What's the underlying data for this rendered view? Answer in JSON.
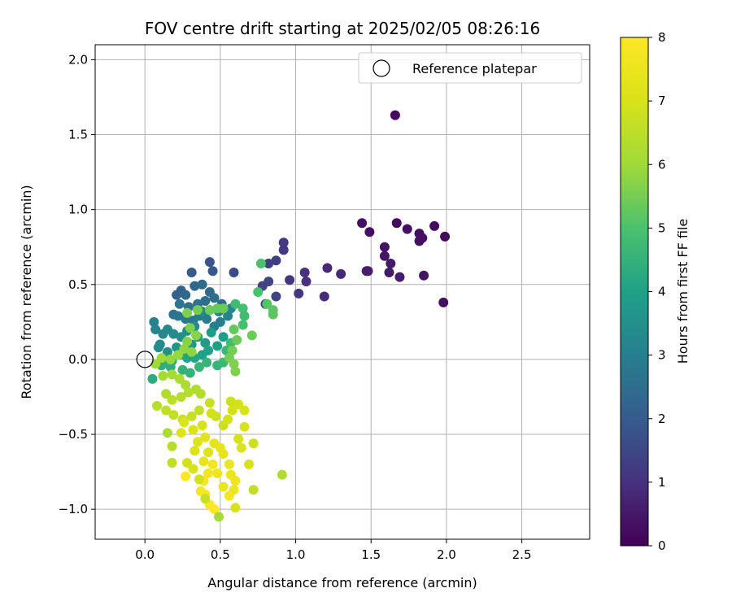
{
  "chart_data": {
    "type": "scatter",
    "title": "FOV centre drift starting at 2025/02/05 08:26:16",
    "xlabel": "Angular distance from reference (arcmin)",
    "ylabel": "Rotation from reference (arcmin)",
    "xlim": [
      -0.33,
      2.95
    ],
    "ylim": [
      -1.2,
      2.1
    ],
    "xticks": [
      0.0,
      0.5,
      1.0,
      1.5,
      2.0,
      2.5
    ],
    "xtick_labels": [
      "0.0",
      "0.5",
      "1.0",
      "1.5",
      "2.0",
      "2.5"
    ],
    "yticks": [
      -1.0,
      -0.5,
      0.0,
      0.5,
      1.0,
      1.5,
      2.0
    ],
    "ytick_labels": [
      "−1.0",
      "−0.5",
      "0.0",
      "0.5",
      "1.0",
      "1.5",
      "2.0"
    ],
    "grid": true,
    "legend": {
      "placement": "top-right",
      "entries": [
        "Reference platepar"
      ]
    },
    "reference_point": {
      "label": "Reference platepar",
      "x": 0.0,
      "y": 0.0
    },
    "colorbar": {
      "label": "Hours from first FF file",
      "colormap": "viridis",
      "range": [
        0,
        8
      ],
      "ticks": [
        0,
        1,
        2,
        3,
        4,
        5,
        6,
        7,
        8
      ],
      "tick_labels": [
        "0",
        "1",
        "2",
        "3",
        "4",
        "5",
        "6",
        "7",
        "8"
      ]
    },
    "series": [
      {
        "points": [
          [
            1.66,
            1.63,
            0.2
          ],
          [
            1.44,
            0.91,
            0.3
          ],
          [
            1.67,
            0.91,
            0.2
          ],
          [
            1.49,
            0.85,
            0.3
          ],
          [
            1.74,
            0.87,
            0.3
          ],
          [
            1.92,
            0.89,
            0.2
          ],
          [
            1.99,
            0.82,
            0.2
          ],
          [
            1.82,
            0.84,
            0.3
          ],
          [
            1.84,
            0.81,
            0.3
          ],
          [
            1.82,
            0.79,
            0.3
          ],
          [
            1.59,
            0.75,
            0.4
          ],
          [
            1.59,
            0.69,
            0.4
          ],
          [
            1.63,
            0.64,
            0.5
          ],
          [
            1.62,
            0.58,
            0.5
          ],
          [
            1.69,
            0.55,
            0.6
          ],
          [
            1.85,
            0.56,
            0.4
          ],
          [
            1.98,
            0.38,
            0.3
          ],
          [
            1.48,
            0.59,
            0.6
          ],
          [
            1.47,
            0.59,
            0.6
          ],
          [
            1.3,
            0.57,
            0.8
          ],
          [
            1.21,
            0.61,
            0.8
          ],
          [
            1.19,
            0.42,
            0.9
          ],
          [
            1.06,
            0.58,
            1.0
          ],
          [
            1.07,
            0.52,
            1.0
          ],
          [
            1.02,
            0.44,
            1.1
          ],
          [
            0.96,
            0.53,
            1.1
          ],
          [
            0.92,
            0.78,
            1.2
          ],
          [
            0.92,
            0.73,
            1.2
          ],
          [
            0.87,
            0.66,
            1.3
          ],
          [
            0.82,
            0.64,
            1.3
          ],
          [
            0.82,
            0.52,
            1.4
          ],
          [
            0.78,
            0.49,
            1.4
          ],
          [
            0.87,
            0.42,
            1.4
          ],
          [
            0.8,
            0.37,
            1.4
          ],
          [
            0.59,
            0.58,
            1.6
          ],
          [
            0.43,
            0.65,
            1.8
          ],
          [
            0.45,
            0.59,
            1.9
          ],
          [
            0.31,
            0.58,
            2.0
          ]
        ]
      },
      {
        "points": [
          [
            0.21,
            0.43,
            2.2
          ],
          [
            0.24,
            0.46,
            2.2
          ],
          [
            0.27,
            0.43,
            2.3
          ],
          [
            0.33,
            0.49,
            2.3
          ],
          [
            0.38,
            0.5,
            2.4
          ],
          [
            0.43,
            0.45,
            2.4
          ],
          [
            0.46,
            0.41,
            2.5
          ],
          [
            0.51,
            0.37,
            2.4
          ],
          [
            0.4,
            0.39,
            2.5
          ],
          [
            0.35,
            0.37,
            2.6
          ],
          [
            0.29,
            0.35,
            2.6
          ],
          [
            0.23,
            0.37,
            2.7
          ],
          [
            0.19,
            0.3,
            2.6
          ],
          [
            0.22,
            0.29,
            2.7
          ],
          [
            0.27,
            0.27,
            2.8
          ],
          [
            0.32,
            0.26,
            2.8
          ],
          [
            0.36,
            0.29,
            2.9
          ],
          [
            0.41,
            0.27,
            2.9
          ],
          [
            0.46,
            0.22,
            3.0
          ],
          [
            0.5,
            0.25,
            3.0
          ],
          [
            0.55,
            0.29,
            3.1
          ],
          [
            0.57,
            0.34,
            3.2
          ],
          [
            0.49,
            0.32,
            3.2
          ],
          [
            0.43,
            0.33,
            3.3
          ],
          [
            0.38,
            0.32,
            3.3
          ],
          [
            0.33,
            0.22,
            3.4
          ],
          [
            0.28,
            0.19,
            3.4
          ],
          [
            0.24,
            0.15,
            3.5
          ],
          [
            0.19,
            0.17,
            3.4
          ],
          [
            0.15,
            0.2,
            3.3
          ],
          [
            0.12,
            0.17,
            3.2
          ],
          [
            0.07,
            0.2,
            3.1
          ],
          [
            0.06,
            0.25,
            3.1
          ],
          [
            0.1,
            0.1,
            3.3
          ],
          [
            0.09,
            0.08,
            3.4
          ],
          [
            0.15,
            0.05,
            3.5
          ],
          [
            0.21,
            0.08,
            3.6
          ],
          [
            0.26,
            0.05,
            3.6
          ],
          [
            0.31,
            0.1,
            3.7
          ],
          [
            0.35,
            0.15,
            3.7
          ],
          [
            0.4,
            0.11,
            3.8
          ],
          [
            0.44,
            0.18,
            3.8
          ],
          [
            0.52,
            0.15,
            3.9
          ],
          [
            0.48,
            0.09,
            3.9
          ],
          [
            0.42,
            0.06,
            4.0
          ],
          [
            0.38,
            0.03,
            4.0
          ],
          [
            0.33,
            0.01,
            4.1
          ],
          [
            0.28,
            0.01,
            4.1
          ],
          [
            0.23,
            0.03,
            4.2
          ],
          [
            0.18,
            -0.01,
            4.2
          ],
          [
            0.12,
            -0.02,
            4.3
          ],
          [
            0.05,
            -0.13,
            4.3
          ],
          [
            0.11,
            -0.04,
            4.4
          ],
          [
            0.17,
            -0.05,
            4.4
          ],
          [
            0.25,
            -0.07,
            4.5
          ],
          [
            0.3,
            -0.09,
            4.5
          ],
          [
            0.36,
            -0.05,
            4.6
          ],
          [
            0.41,
            -0.02,
            4.6
          ],
          [
            0.48,
            -0.04,
            4.6
          ],
          [
            0.52,
            -0.02,
            4.7
          ],
          [
            0.54,
            0.06,
            4.7
          ],
          [
            0.57,
            0.11,
            4.8
          ],
          [
            0.6,
            0.37,
            4.8
          ],
          [
            0.65,
            0.34,
            4.9
          ],
          [
            0.66,
            0.29,
            4.8
          ],
          [
            0.65,
            0.23,
            4.9
          ],
          [
            0.77,
            0.64,
            5.0
          ],
          [
            0.75,
            0.45,
            5.0
          ],
          [
            0.81,
            0.37,
            5.1
          ],
          [
            0.85,
            0.33,
            5.2
          ],
          [
            0.85,
            0.3,
            5.2
          ],
          [
            0.71,
            0.16,
            5.4
          ],
          [
            0.59,
            0.2,
            5.3
          ],
          [
            0.61,
            0.13,
            5.4
          ],
          [
            0.58,
            0.06,
            5.5
          ],
          [
            0.56,
            0.01,
            5.5
          ],
          [
            0.59,
            -0.03,
            5.6
          ],
          [
            0.6,
            -0.08,
            5.6
          ],
          [
            0.48,
            0.34,
            5.3
          ],
          [
            0.52,
            0.34,
            5.4
          ],
          [
            0.43,
            0.33,
            5.4
          ],
          [
            0.35,
            0.33,
            5.5
          ],
          [
            0.28,
            0.31,
            5.6
          ],
          [
            0.3,
            0.21,
            5.6
          ],
          [
            0.34,
            0.16,
            5.7
          ],
          [
            0.28,
            0.12,
            5.7
          ],
          [
            0.26,
            0.07,
            5.8
          ],
          [
            0.31,
            0.05,
            5.8
          ],
          [
            0.22,
            0.03,
            5.9
          ],
          [
            0.17,
            0.0,
            5.9
          ],
          [
            0.11,
            0.01,
            6.0
          ],
          [
            0.07,
            -0.03,
            6.0
          ],
          [
            0.12,
            -0.11,
            6.1
          ],
          [
            0.18,
            -0.1,
            6.1
          ],
          [
            0.23,
            -0.13,
            6.2
          ],
          [
            0.27,
            -0.17,
            6.2
          ],
          [
            0.34,
            -0.2,
            6.3
          ],
          [
            0.37,
            -0.23,
            6.3
          ],
          [
            0.29,
            -0.22,
            6.4
          ],
          [
            0.24,
            -0.25,
            6.4
          ],
          [
            0.18,
            -0.27,
            6.5
          ],
          [
            0.14,
            -0.23,
            6.3
          ],
          [
            0.08,
            -0.31,
            6.4
          ],
          [
            0.14,
            -0.34,
            6.6
          ],
          [
            0.19,
            -0.37,
            6.6
          ],
          [
            0.25,
            -0.4,
            6.7
          ],
          [
            0.31,
            -0.38,
            6.7
          ],
          [
            0.36,
            -0.34,
            6.6
          ],
          [
            0.43,
            -0.29,
            6.7
          ],
          [
            0.47,
            -0.38,
            6.8
          ],
          [
            0.52,
            -0.44,
            6.8
          ],
          [
            0.55,
            -0.4,
            6.9
          ],
          [
            0.58,
            -0.34,
            6.9
          ],
          [
            0.57,
            -0.28,
            6.8
          ],
          [
            0.62,
            -0.3,
            6.9
          ],
          [
            0.66,
            -0.34,
            7.0
          ],
          [
            0.66,
            -0.45,
            7.0
          ],
          [
            0.62,
            -0.53,
            7.0
          ],
          [
            0.64,
            -0.59,
            7.1
          ],
          [
            0.72,
            -0.56,
            6.8
          ],
          [
            0.69,
            -0.7,
            7.0
          ],
          [
            0.72,
            -0.87,
            6.6
          ],
          [
            0.91,
            -0.77,
            6.3
          ],
          [
            0.6,
            -0.99,
            7.0
          ],
          [
            0.44,
            -0.36,
            6.9
          ],
          [
            0.38,
            -0.44,
            7.0
          ],
          [
            0.32,
            -0.47,
            7.1
          ],
          [
            0.26,
            -0.42,
            7.1
          ],
          [
            0.24,
            -0.49,
            7.2
          ],
          [
            0.18,
            -0.58,
            6.4
          ],
          [
            0.18,
            -0.69,
            6.5
          ],
          [
            0.15,
            -0.49,
            6.2
          ],
          [
            0.28,
            -0.69,
            6.9
          ],
          [
            0.33,
            -0.61,
            7.1
          ],
          [
            0.35,
            -0.55,
            7.2
          ],
          [
            0.4,
            -0.52,
            7.3
          ],
          [
            0.46,
            -0.56,
            7.3
          ],
          [
            0.5,
            -0.59,
            7.4
          ],
          [
            0.52,
            -0.63,
            7.4
          ],
          [
            0.56,
            -0.7,
            7.5
          ],
          [
            0.57,
            -0.77,
            7.5
          ],
          [
            0.6,
            -0.81,
            7.6
          ],
          [
            0.59,
            -0.87,
            7.6
          ],
          [
            0.56,
            -0.91,
            7.7
          ],
          [
            0.52,
            -0.85,
            7.5
          ],
          [
            0.48,
            -0.76,
            7.6
          ],
          [
            0.45,
            -0.7,
            7.7
          ],
          [
            0.42,
            -0.76,
            7.7
          ],
          [
            0.39,
            -0.81,
            7.8
          ],
          [
            0.37,
            -0.88,
            7.8
          ],
          [
            0.4,
            -0.9,
            7.9
          ],
          [
            0.43,
            -0.97,
            7.9
          ],
          [
            0.46,
            -1.0,
            8.0
          ],
          [
            0.49,
            -1.05,
            6.1
          ],
          [
            0.4,
            -0.93,
            6.7
          ],
          [
            0.36,
            -0.8,
            6.9
          ],
          [
            0.32,
            -0.73,
            7.0
          ],
          [
            0.27,
            -0.78,
            7.9
          ],
          [
            0.42,
            -0.62,
            7.2
          ],
          [
            0.39,
            -0.68,
            7.4
          ]
        ]
      }
    ]
  }
}
